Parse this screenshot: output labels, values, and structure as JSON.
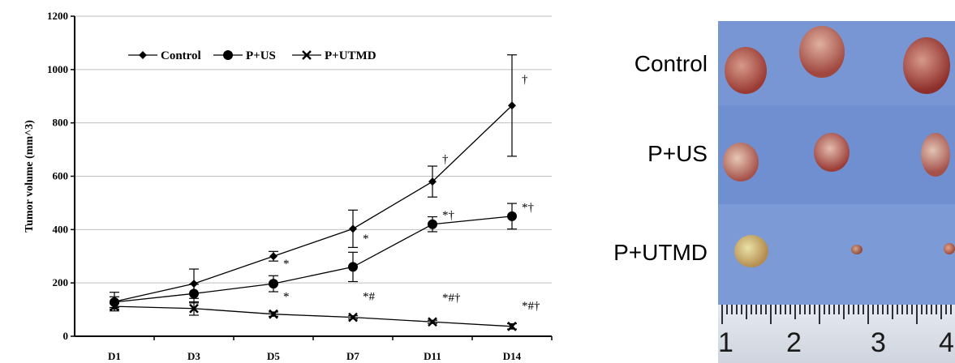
{
  "chart_data": {
    "type": "line",
    "ylabel": "Tumor volume (mm^3)",
    "xlabel": "",
    "categories": [
      "D1",
      "D3",
      "D5",
      "D7",
      "D11",
      "D14"
    ],
    "ylim": [
      0,
      1200
    ],
    "yticks": [
      "0",
      "200",
      "400",
      "600",
      "800",
      "1000",
      "1200"
    ],
    "grid": true,
    "legend": "top-left inside",
    "series": [
      {
        "name": "Control",
        "marker": "diamond",
        "values": [
          130,
          197,
          300,
          403,
          580,
          865
        ],
        "errors": [
          35,
          55,
          18,
          70,
          58,
          190
        ]
      },
      {
        "name": "P+US",
        "marker": "circle",
        "values": [
          128,
          160,
          197,
          260,
          420,
          450
        ],
        "errors": [
          20,
          35,
          30,
          55,
          28,
          48
        ]
      },
      {
        "name": "P+UTMD",
        "marker": "x",
        "values": [
          112,
          104,
          83,
          71,
          54,
          37
        ],
        "errors": [
          10,
          25,
          8,
          6,
          6,
          10
        ]
      }
    ],
    "annotations": [
      {
        "category": "D5",
        "y": 258,
        "text": "*"
      },
      {
        "category": "D5",
        "y": 135,
        "text": "*"
      },
      {
        "category": "D7",
        "y": 352,
        "text": "*"
      },
      {
        "category": "D7",
        "y": 135,
        "text": "*#"
      },
      {
        "category": "D11",
        "y": 650,
        "text": "†"
      },
      {
        "category": "D11",
        "y": 440,
        "text": "*†"
      },
      {
        "category": "D11",
        "y": 130,
        "text": "*#†"
      },
      {
        "category": "D14",
        "y": 950,
        "text": "†"
      },
      {
        "category": "D14",
        "y": 470,
        "text": "*†"
      },
      {
        "category": "D14",
        "y": 100,
        "text": "*#†"
      }
    ]
  },
  "photo": {
    "row_labels": [
      "Control",
      "P+US",
      "P+UTMD"
    ],
    "ruler_numbers": [
      "1",
      "2",
      "3",
      "4"
    ]
  }
}
